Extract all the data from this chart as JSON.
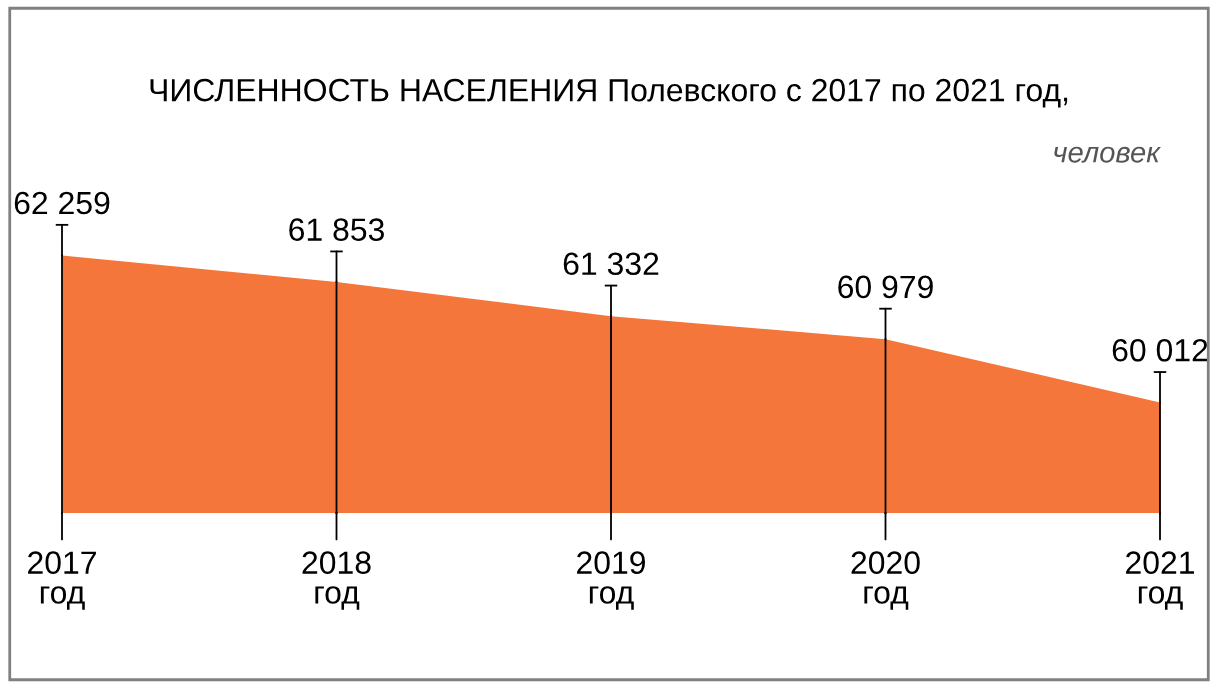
{
  "chart_data": {
    "type": "area",
    "title": "ЧИСЛЕННОСТЬ НАСЕЛЕНИЯ Полевского с 2017 по 2021 год,",
    "subtitle": "человек",
    "categories": [
      "2017\nгод",
      "2018\nгод",
      "2019\nгод",
      "2020\nгод",
      "2021\nгод"
    ],
    "values": [
      62259,
      61853,
      61332,
      60979,
      60012
    ],
    "color": "#f4763b",
    "data_labels": true,
    "grid": false,
    "legend": false,
    "tick_labels": "x"
  }
}
